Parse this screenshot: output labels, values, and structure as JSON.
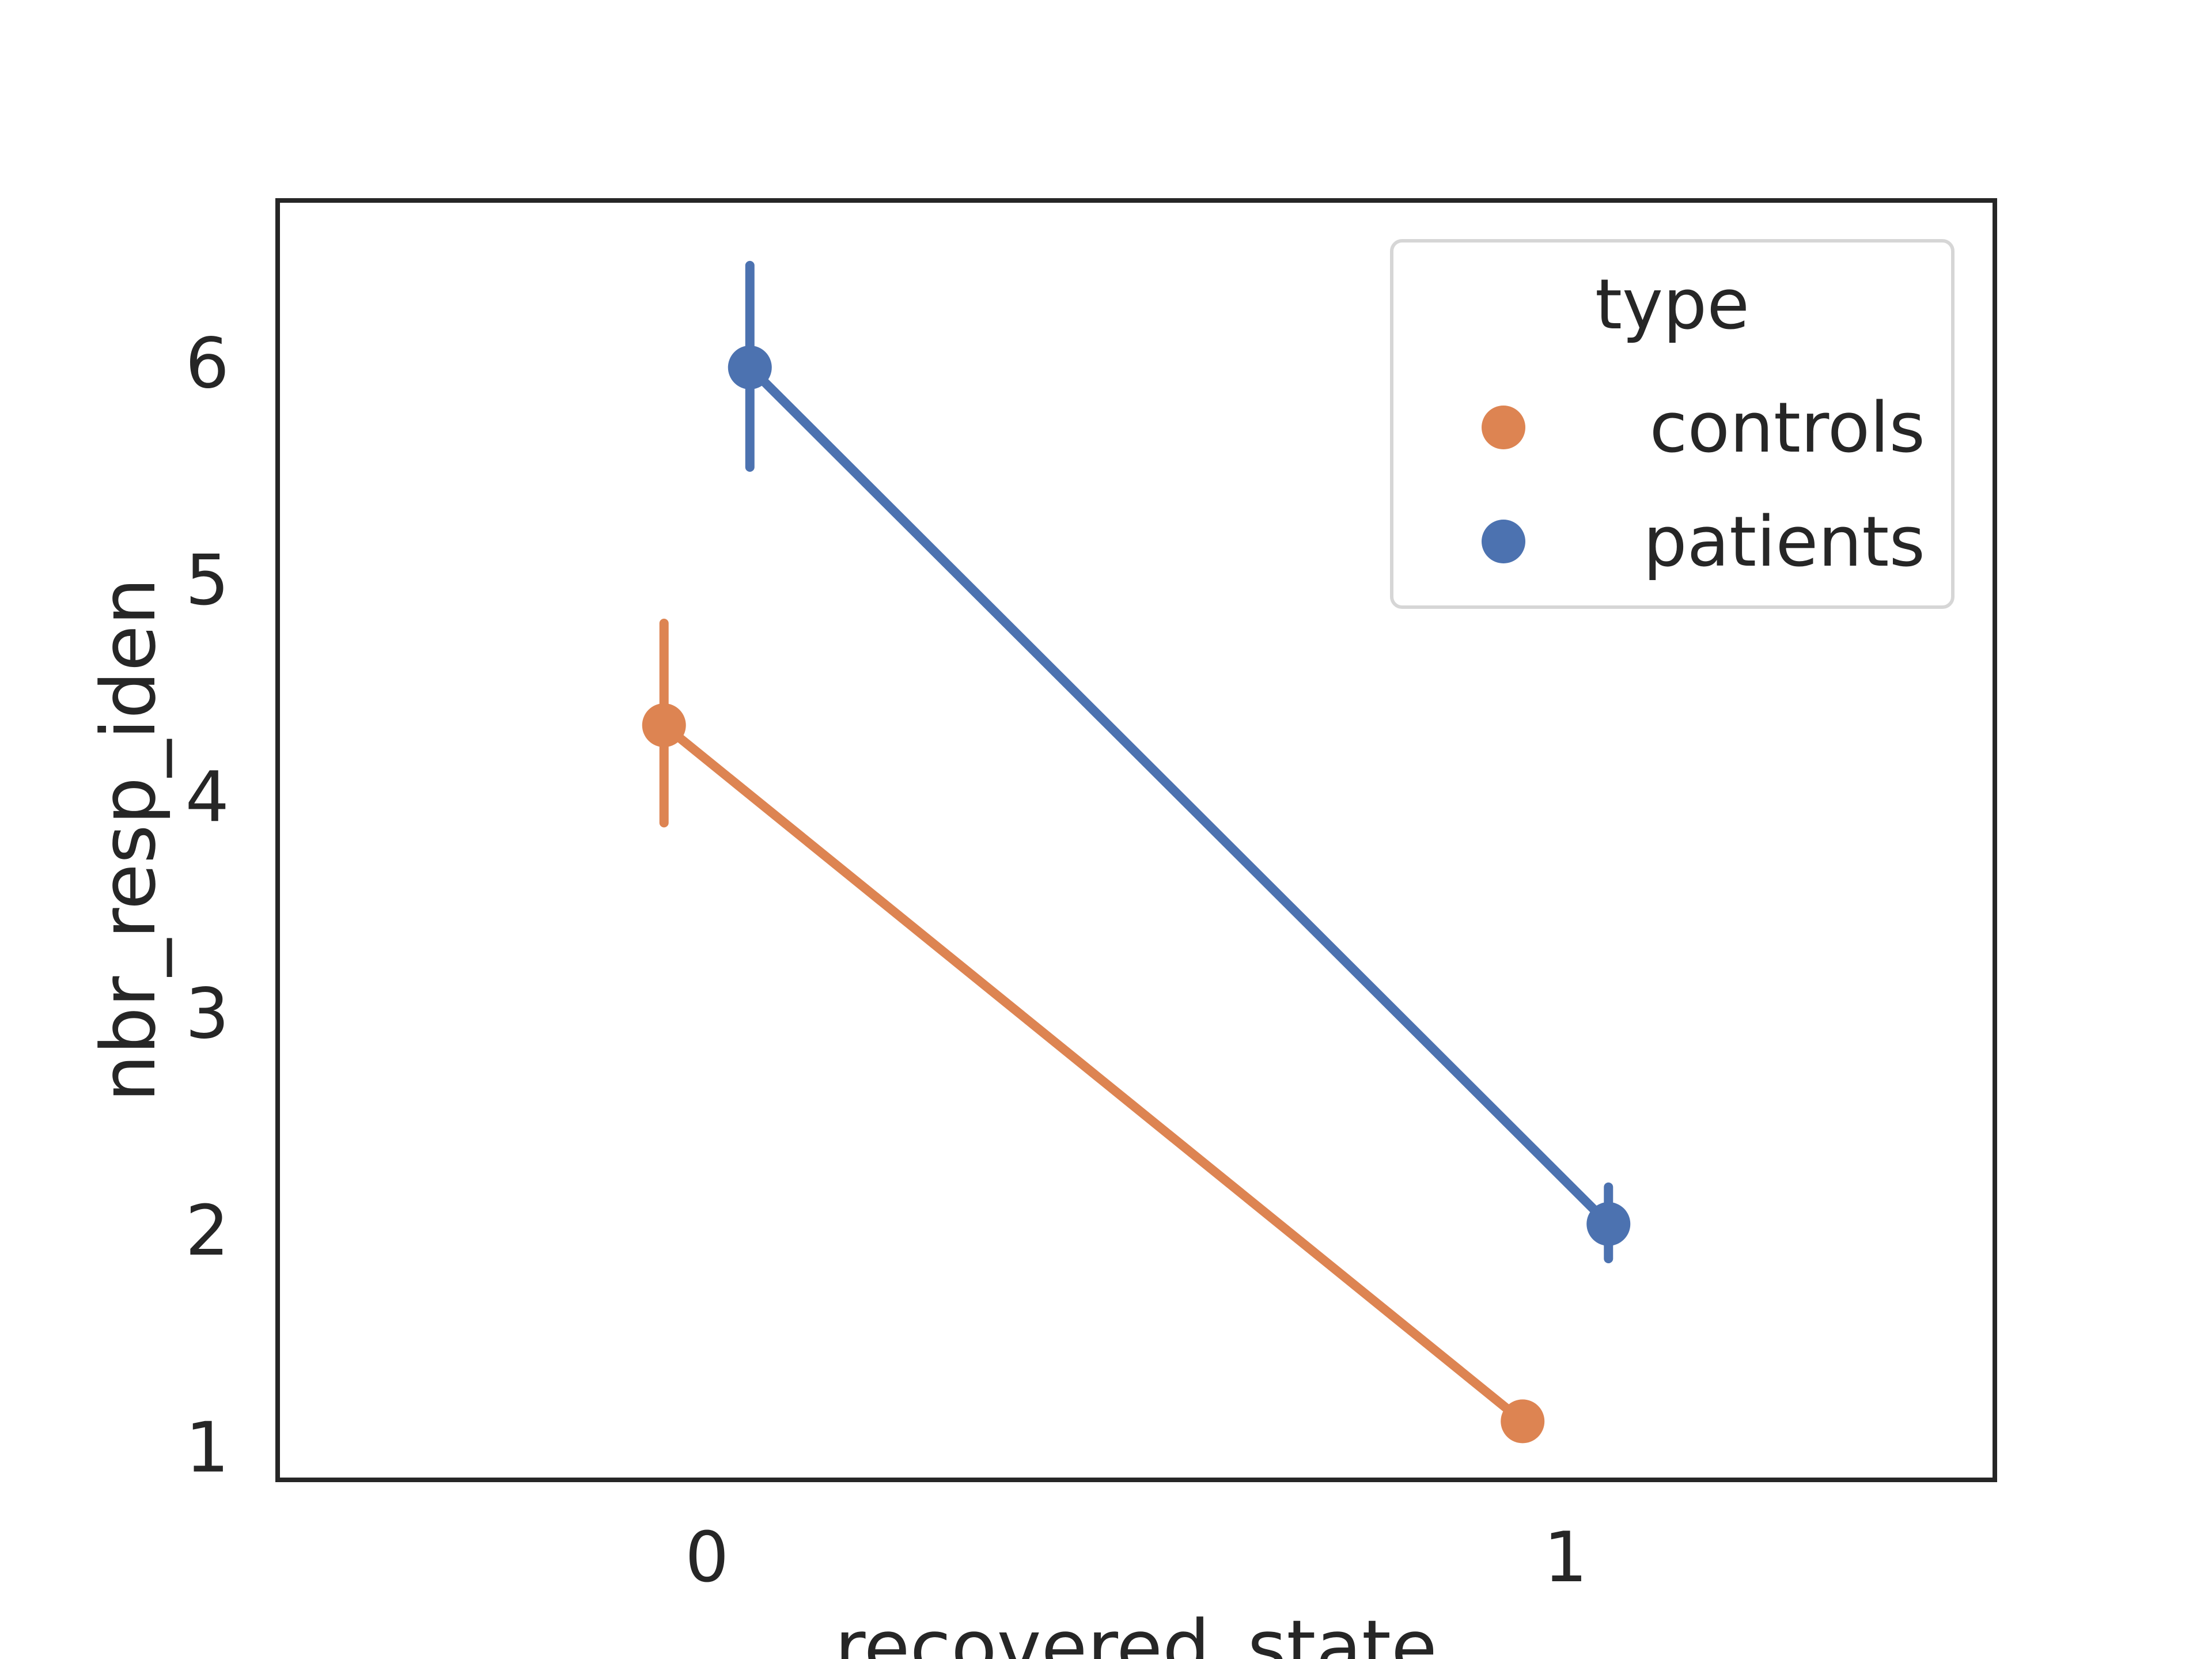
{
  "chart_data": {
    "type": "line",
    "title": "",
    "xlabel": "recovered_state",
    "ylabel": "nbr_resp_iden",
    "x_categories": [
      "0",
      "1"
    ],
    "y_ticks": [
      1,
      2,
      3,
      4,
      5,
      6
    ],
    "y_tick_labels": [
      "1",
      "2",
      "3",
      "4",
      "5",
      "6"
    ],
    "ylim": [
      0.85,
      6.75
    ],
    "grid": false,
    "legend": {
      "title": "type",
      "placement": "top-right"
    },
    "series": [
      {
        "name": "controls",
        "color": "#DD8452",
        "values": [
          4.33,
          1.12
        ],
        "ci_low": [
          3.88,
          1.12
        ],
        "ci_high": [
          4.8,
          1.12
        ],
        "dodge": -0.05
      },
      {
        "name": "patients",
        "color": "#4C72B0",
        "values": [
          5.98,
          2.03
        ],
        "ci_low": [
          5.52,
          1.87
        ],
        "ci_high": [
          6.45,
          2.2
        ],
        "dodge": 0.05
      }
    ]
  }
}
